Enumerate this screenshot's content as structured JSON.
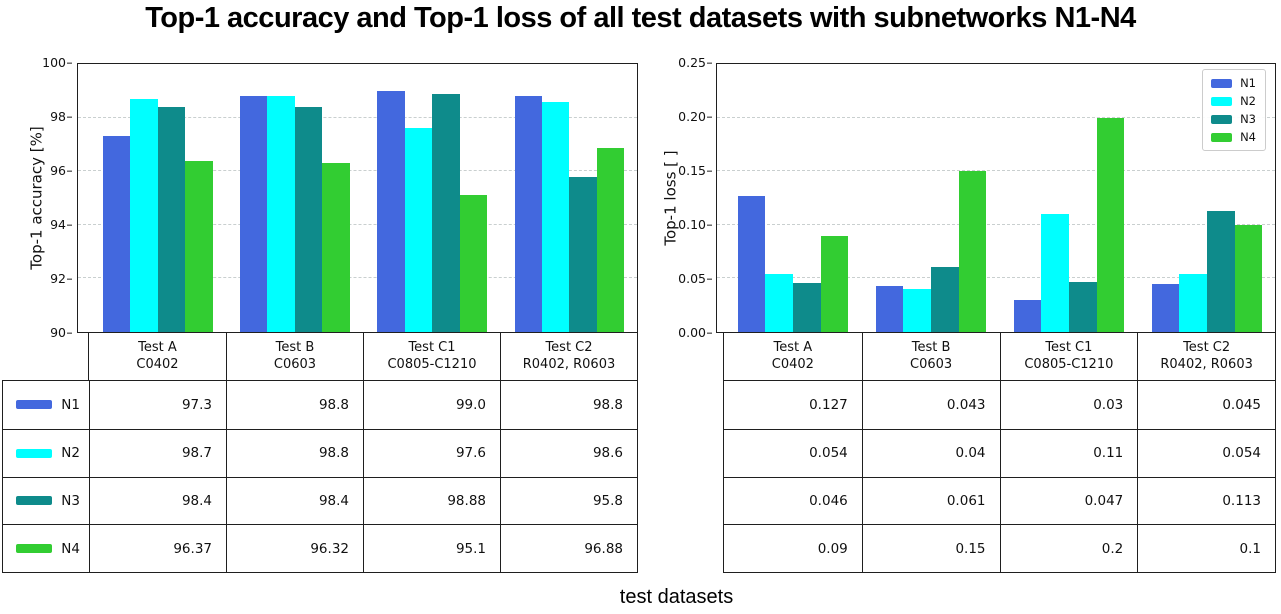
{
  "title": "Top-1 accuracy and Top-1 loss of all test datasets with subnetworks N1-N4",
  "xlabel": "test datasets",
  "colors": {
    "N1": "#4368de",
    "N2": "#00ffff",
    "N3": "#0e8b8b",
    "N4": "#32cd32"
  },
  "categories": [
    {
      "line1": "Test A",
      "line2": "C0402"
    },
    {
      "line1": "Test B",
      "line2": "C0603"
    },
    {
      "line1": "Test C1",
      "line2": "C0805-C1210"
    },
    {
      "line1": "Test C2",
      "line2": "R0402, R0603"
    }
  ],
  "chart_data": [
    {
      "type": "bar",
      "title": "",
      "ylabel": "Top-1 accuracy [%]",
      "xlabel": "test datasets",
      "ylim": [
        90,
        100
      ],
      "yticks": [
        90,
        92,
        94,
        96,
        98,
        100
      ],
      "ytick_labels": [
        "90",
        "92",
        "94",
        "96",
        "98",
        "100"
      ],
      "grid": true,
      "legend": false,
      "categories": [
        "Test A C0402",
        "Test B C0603",
        "Test C1 C0805-C1210",
        "Test C2 R0402, R0603"
      ],
      "series": [
        {
          "name": "N1",
          "color": "#4368de",
          "values": [
            97.3,
            98.8,
            99.0,
            98.8
          ]
        },
        {
          "name": "N2",
          "color": "#00ffff",
          "values": [
            98.7,
            98.8,
            97.6,
            98.6
          ]
        },
        {
          "name": "N3",
          "color": "#0e8b8b",
          "values": [
            98.4,
            98.4,
            98.88,
            95.8
          ]
        },
        {
          "name": "N4",
          "color": "#32cd32",
          "values": [
            96.37,
            96.32,
            95.1,
            96.88
          ]
        }
      ]
    },
    {
      "type": "bar",
      "title": "",
      "ylabel": "Top-1 loss [ ]",
      "xlabel": "test datasets",
      "ylim": [
        0,
        0.25
      ],
      "yticks": [
        0,
        0.05,
        0.1,
        0.15,
        0.2,
        0.25
      ],
      "ytick_labels": [
        "0.00",
        "0.05",
        "0.10",
        "0.15",
        "0.20",
        "0.25"
      ],
      "grid": true,
      "legend": true,
      "legend_position": "upper right",
      "categories": [
        "Test A C0402",
        "Test B C0603",
        "Test C1 C0805-C1210",
        "Test C2 R0402, R0603"
      ],
      "series": [
        {
          "name": "N1",
          "color": "#4368de",
          "values": [
            0.127,
            0.043,
            0.03,
            0.045
          ]
        },
        {
          "name": "N2",
          "color": "#00ffff",
          "values": [
            0.054,
            0.04,
            0.11,
            0.054
          ]
        },
        {
          "name": "N3",
          "color": "#0e8b8b",
          "values": [
            0.046,
            0.061,
            0.047,
            0.113
          ]
        },
        {
          "name": "N4",
          "color": "#32cd32",
          "values": [
            0.09,
            0.15,
            0.2,
            0.1
          ]
        }
      ]
    }
  ],
  "tables": {
    "accuracy": {
      "rows": [
        {
          "label": "N1",
          "values": [
            "97.3",
            "98.8",
            "99.0",
            "98.8"
          ]
        },
        {
          "label": "N2",
          "values": [
            "98.7",
            "98.8",
            "97.6",
            "98.6"
          ]
        },
        {
          "label": "N3",
          "values": [
            "98.4",
            "98.4",
            "98.88",
            "95.8"
          ]
        },
        {
          "label": "N4",
          "values": [
            "96.37",
            "96.32",
            "95.1",
            "96.88"
          ]
        }
      ]
    },
    "loss": {
      "rows": [
        {
          "values": [
            "0.127",
            "0.043",
            "0.03",
            "0.045"
          ]
        },
        {
          "values": [
            "0.054",
            "0.04",
            "0.11",
            "0.054"
          ]
        },
        {
          "values": [
            "0.046",
            "0.061",
            "0.047",
            "0.113"
          ]
        },
        {
          "values": [
            "0.09",
            "0.15",
            "0.2",
            "0.1"
          ]
        }
      ]
    }
  },
  "legend_items": [
    "N1",
    "N2",
    "N3",
    "N4"
  ]
}
